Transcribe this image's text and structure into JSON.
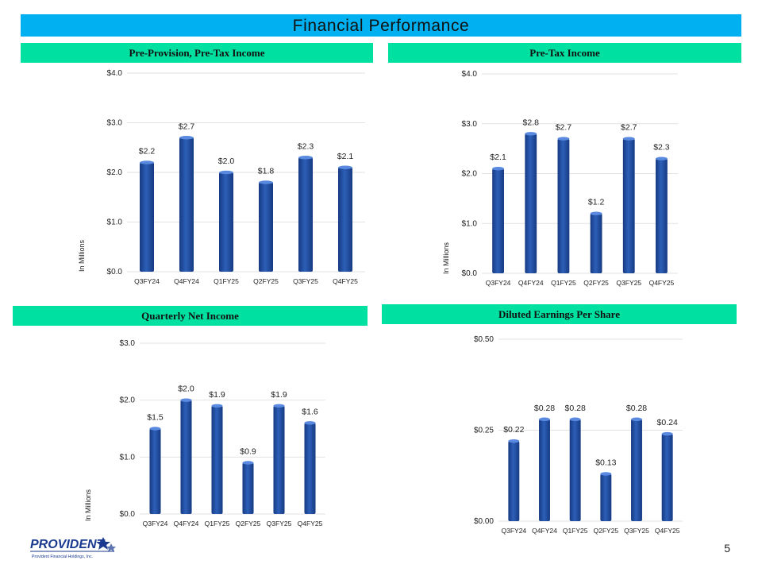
{
  "page": {
    "title": "Financial Performance",
    "page_number": "5",
    "logo_text": "PROVIDENT",
    "logo_subtext": "Provident Financial Holdings, Inc."
  },
  "colors": {
    "title_bar": "#00b0f0",
    "header": "#00e0a0",
    "bar": "#2d5fb8",
    "bar_dark": "#163a82"
  },
  "chart_data": [
    {
      "id": "ppti",
      "type": "bar",
      "title": "Pre-Provision, Pre-Tax Income",
      "ylabel": "In Millions",
      "categories": [
        "Q3FY24",
        "Q4FY24",
        "Q1FY25",
        "Q2FY25",
        "Q3FY25",
        "Q4FY25"
      ],
      "values": [
        2.2,
        2.7,
        2.0,
        1.8,
        2.3,
        2.1
      ],
      "labels": [
        "$2.2",
        "$2.7",
        "$2.0",
        "$1.8",
        "$2.3",
        "$2.1"
      ],
      "ylim": [
        0,
        4
      ],
      "yticks": [
        0,
        1,
        2,
        3,
        4
      ],
      "ytick_labels": [
        "$0.0",
        "$1.0",
        "$2.0",
        "$3.0",
        "$4.0"
      ]
    },
    {
      "id": "pti",
      "type": "bar",
      "title": "Pre-Tax Income",
      "ylabel": "In Millions",
      "categories": [
        "Q3FY24",
        "Q4FY24",
        "Q1FY25",
        "Q2FY25",
        "Q3FY25",
        "Q4FY25"
      ],
      "values": [
        2.1,
        2.8,
        2.7,
        1.2,
        2.7,
        2.3
      ],
      "labels": [
        "$2.1",
        "$2.8",
        "$2.7",
        "$1.2",
        "$2.7",
        "$2.3"
      ],
      "ylim": [
        0,
        4
      ],
      "yticks": [
        0,
        1,
        2,
        3,
        4
      ],
      "ytick_labels": [
        "$0.0",
        "$1.0",
        "$2.0",
        "$3.0",
        "$4.0"
      ]
    },
    {
      "id": "qni",
      "type": "bar",
      "title": "Quarterly Net Income",
      "ylabel": "In Millions",
      "categories": [
        "Q3FY24",
        "Q4FY24",
        "Q1FY25",
        "Q2FY25",
        "Q3FY25",
        "Q4FY25"
      ],
      "values": [
        1.5,
        2.0,
        1.9,
        0.9,
        1.9,
        1.6
      ],
      "labels": [
        "$1.5",
        "$2.0",
        "$1.9",
        "$0.9",
        "$1.9",
        "$1.6"
      ],
      "ylim": [
        0,
        3
      ],
      "yticks": [
        0,
        1,
        2,
        3
      ],
      "ytick_labels": [
        "$0.0",
        "$1.0",
        "$2.0",
        "$3.0"
      ]
    },
    {
      "id": "eps",
      "type": "bar",
      "title": "Diluted Earnings Per Share",
      "ylabel": "",
      "categories": [
        "Q3FY24",
        "Q4FY24",
        "Q1FY25",
        "Q2FY25",
        "Q3FY25",
        "Q4FY25"
      ],
      "values": [
        0.22,
        0.28,
        0.28,
        0.13,
        0.28,
        0.24
      ],
      "labels": [
        "$0.22",
        "$0.28",
        "$0.28",
        "$0.13",
        "$0.28",
        "$0.24"
      ],
      "ylim": [
        0,
        0.5
      ],
      "yticks": [
        0,
        0.25,
        0.5
      ],
      "ytick_labels": [
        "$0.00",
        "$0.25",
        "$0.50"
      ]
    }
  ]
}
